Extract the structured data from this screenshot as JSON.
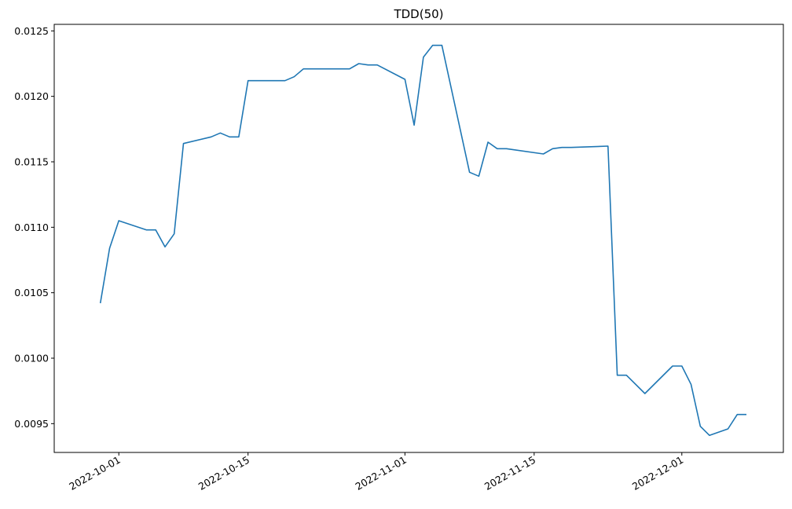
{
  "chart_data": {
    "type": "line",
    "title": "TDD(50)",
    "xlabel": "",
    "ylabel": "",
    "grid": false,
    "x_axis_type": "date",
    "xlim": [
      "2022-09-24",
      "2022-12-12"
    ],
    "ylim": [
      0.00928,
      0.01255
    ],
    "x_ticks": [
      {
        "value": "2022-10-01",
        "label": "2022-10-01"
      },
      {
        "value": "2022-10-15",
        "label": "2022-10-15"
      },
      {
        "value": "2022-11-01",
        "label": "2022-11-01"
      },
      {
        "value": "2022-11-15",
        "label": "2022-11-15"
      },
      {
        "value": "2022-12-01",
        "label": "2022-12-01"
      }
    ],
    "y_ticks": [
      {
        "value": 0.0095,
        "label": "0.0095"
      },
      {
        "value": 0.01,
        "label": "0.0100"
      },
      {
        "value": 0.0105,
        "label": "0.0105"
      },
      {
        "value": 0.011,
        "label": "0.0110"
      },
      {
        "value": 0.0115,
        "label": "0.0115"
      },
      {
        "value": 0.012,
        "label": "0.0120"
      },
      {
        "value": 0.0125,
        "label": "0.0125"
      }
    ],
    "series": [
      {
        "color": "#1f77b4",
        "x": [
          "2022-09-29",
          "2022-09-30",
          "2022-10-01",
          "2022-10-04",
          "2022-10-05",
          "2022-10-06",
          "2022-10-07",
          "2022-10-08",
          "2022-10-11",
          "2022-10-12",
          "2022-10-13",
          "2022-10-14",
          "2022-10-15",
          "2022-10-19",
          "2022-10-20",
          "2022-10-21",
          "2022-10-26",
          "2022-10-27",
          "2022-10-28",
          "2022-10-29",
          "2022-11-01",
          "2022-11-02",
          "2022-11-03",
          "2022-11-04",
          "2022-11-05",
          "2022-11-08",
          "2022-11-09",
          "2022-11-10",
          "2022-11-11",
          "2022-11-12",
          "2022-11-16",
          "2022-11-17",
          "2022-11-18",
          "2022-11-19",
          "2022-11-23",
          "2022-11-24",
          "2022-11-25",
          "2022-11-27",
          "2022-11-30",
          "2022-12-01",
          "2022-12-02",
          "2022-12-03",
          "2022-12-04",
          "2022-12-06",
          "2022-12-07",
          "2022-12-08"
        ],
        "y": [
          0.01042,
          0.01084,
          0.01105,
          0.01098,
          0.01098,
          0.01085,
          0.01095,
          0.01164,
          0.01169,
          0.01172,
          0.01169,
          0.01169,
          0.01212,
          0.01212,
          0.01215,
          0.01221,
          0.01221,
          0.01225,
          0.01224,
          0.01224,
          0.01213,
          0.01178,
          0.0123,
          0.01239,
          0.01239,
          0.01142,
          0.01139,
          0.01165,
          0.0116,
          0.0116,
          0.01156,
          0.0116,
          0.01161,
          0.01161,
          0.01162,
          0.00987,
          0.00987,
          0.00973,
          0.00994,
          0.00994,
          0.0098,
          0.00948,
          0.00941,
          0.00946,
          0.00957,
          0.00957
        ]
      }
    ]
  }
}
